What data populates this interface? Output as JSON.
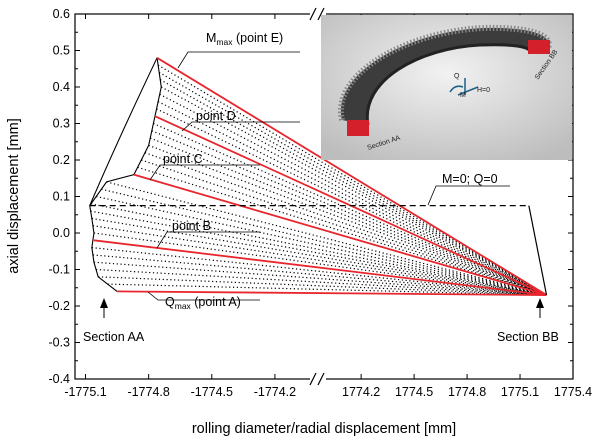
{
  "chart_data": {
    "type": "line",
    "xlabel": "rolling diameter/radial displacement [mm]",
    "ylabel": "axial displacement [mm]",
    "ylim": [
      -0.4,
      0.6
    ],
    "y_ticks": [
      "-0.4",
      "-0.3",
      "-0.2",
      "-0.1",
      "0.0",
      "0.1",
      "0.2",
      "0.3",
      "0.4",
      "0.5",
      "0.6"
    ],
    "x_axis_broken": true,
    "x_left_segment": {
      "range": [
        -1775.15,
        -1774.0
      ],
      "ticks": [
        "-1775.1",
        "-1774.8",
        "-1774.5",
        "-1774.2"
      ]
    },
    "x_right_segment": {
      "range": [
        1773.95,
        1775.4
      ],
      "ticks": [
        "1774.2",
        "1774.5",
        "1774.8",
        "1775.1",
        "1775.4"
      ]
    },
    "series": [
      {
        "name": "Qmax (point A)",
        "x_left": -1774.95,
        "y_left": -0.16,
        "x_right": 1775.25,
        "y_right": -0.17
      },
      {
        "name": "point B",
        "x_left": -1775.06,
        "y_left": -0.02,
        "x_right": 1775.25,
        "y_right": -0.17
      },
      {
        "name": "point C",
        "x_left": -1774.87,
        "y_left": 0.16,
        "x_right": 1775.25,
        "y_right": -0.17
      },
      {
        "name": "point D",
        "x_left": -1774.77,
        "y_left": 0.32,
        "x_right": 1775.25,
        "y_right": -0.17
      },
      {
        "name": "Mmax (point E)",
        "x_left": -1774.76,
        "y_left": 0.48,
        "x_right": 1775.25,
        "y_right": -0.17
      },
      {
        "name": "M=0; Q=0",
        "x_left": -1775.08,
        "y_left": 0.075,
        "x_right": 1775.15,
        "y_right": 0.075
      }
    ],
    "dotted_lines_left_y": [
      -0.14,
      -0.12,
      -0.1,
      -0.08,
      -0.06,
      -0.04,
      0.0,
      0.02,
      0.04,
      0.06,
      0.08,
      0.1,
      0.12,
      0.14,
      0.18,
      0.2,
      0.22,
      0.24,
      0.26,
      0.28,
      0.3,
      0.34,
      0.36,
      0.38,
      0.4,
      0.42,
      0.44,
      0.46
    ],
    "envelope_left": [
      [
        -1774.95,
        -0.16
      ],
      [
        -1775.04,
        -0.12
      ],
      [
        -1775.06,
        -0.08
      ],
      [
        -1775.07,
        -0.04
      ],
      [
        -1775.06,
        0.0
      ],
      [
        -1775.07,
        0.04
      ],
      [
        -1775.08,
        0.075
      ],
      [
        -1775.0,
        0.14
      ],
      [
        -1774.87,
        0.16
      ],
      [
        -1774.8,
        0.24
      ],
      [
        -1774.77,
        0.32
      ],
      [
        -1774.74,
        0.4
      ],
      [
        -1774.76,
        0.48
      ]
    ],
    "left_outer_curve": [
      [
        -1775.08,
        0.075
      ],
      [
        -1774.95,
        0.25
      ],
      [
        -1774.76,
        0.48
      ]
    ],
    "annotations": {
      "point_a_label": "Q",
      "point_a_sub": "max",
      "point_a_rest": " (point A)",
      "point_b": "point B",
      "point_c": "point C",
      "point_d": "point D",
      "point_e_label": "M",
      "point_e_sub": "max",
      "point_e_rest": " (point E)",
      "unloaded": "M=0; Q=0",
      "section_aa": "Section AA",
      "section_bb": "Section BB"
    },
    "inset": {
      "section_aa": "Section AA",
      "section_bb": "Section BB",
      "q_label": "Q",
      "m_label": "M",
      "h_label": "H=0"
    },
    "colors": {
      "highlight": "#e8262d",
      "line": "#000000",
      "inset_bg": "#c9c9c9"
    }
  }
}
